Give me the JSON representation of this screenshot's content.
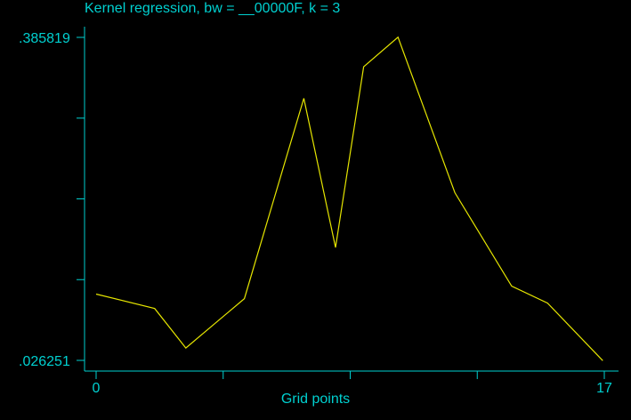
{
  "colors": {
    "background": "#000000",
    "axis": "#00d0d0",
    "text": "#00d0d0",
    "line": "#e6e600"
  },
  "chart_data": {
    "type": "line",
    "title": "Kernel regression, bw = __00000F, k = 3",
    "xlabel": "Grid points",
    "ylabel": "",
    "xlim": [
      0,
      17
    ],
    "ylim": [
      0.026251,
      0.385819
    ],
    "x_tick_labels": [
      "0",
      "17"
    ],
    "y_tick_labels": [
      ".385819",
      ".026251"
    ],
    "series": [
      {
        "x": [
          0,
          1.96,
          3.0,
          4.96,
          6.95,
          8.01,
          8.95,
          10.1,
          12.0,
          13.9,
          15.1,
          16.95
        ],
        "y": [
          0.1,
          0.084,
          0.04,
          0.095,
          0.318,
          0.152,
          0.353,
          0.386,
          0.213,
          0.109,
          0.09,
          0.026
        ]
      }
    ]
  }
}
